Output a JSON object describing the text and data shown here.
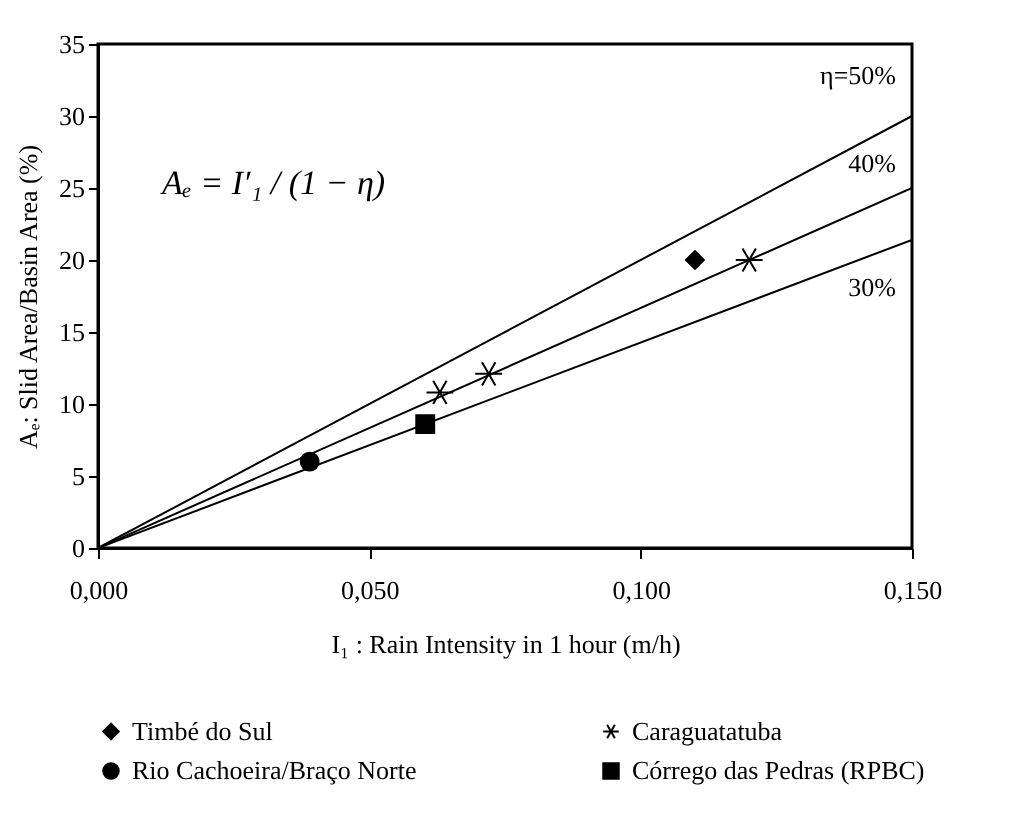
{
  "chart_data": {
    "type": "scatter",
    "xlabel": "I₁ : Rain Intensity in 1 hour (m/h)",
    "ylabel": "Aₑ: Slid Area/Basin Area (%)",
    "xlim": [
      0,
      0.15
    ],
    "xticks": [
      {
        "value": 0,
        "label": "0,000"
      },
      {
        "value": 0.05,
        "label": "0,050"
      },
      {
        "value": 0.1,
        "label": "0,100"
      },
      {
        "value": 0.15,
        "label": "0,150"
      }
    ],
    "ylim": [
      0,
      35
    ],
    "yticks": [
      0,
      5,
      10,
      15,
      20,
      25,
      30,
      35
    ],
    "grid": false,
    "legend": "bottom",
    "annotations": [
      "Aₑ = I′₁ / (1 − η)"
    ],
    "series": [
      {
        "name": "η=50%",
        "type": "line",
        "color": "#000000",
        "marker": "none",
        "x": [
          0,
          0.15
        ],
        "values": [
          0,
          30
        ]
      },
      {
        "name": "40%",
        "type": "line",
        "color": "#000000",
        "marker": "none",
        "x": [
          0,
          0.15
        ],
        "values": [
          0,
          25
        ]
      },
      {
        "name": "30%",
        "type": "line",
        "color": "#000000",
        "marker": "none",
        "x": [
          0,
          0.15
        ],
        "values": [
          0,
          21.4
        ]
      },
      {
        "name": "Timbé do Sul",
        "color": "#000000",
        "marker": "diamond",
        "x": [
          0.11
        ],
        "values": [
          20
        ]
      },
      {
        "name": "Caraguatatuba",
        "color": "#000000",
        "marker": "cross",
        "x": [
          0.063,
          0.072,
          0.12
        ],
        "values": [
          10.8,
          12.1,
          20
        ]
      },
      {
        "name": "Rio Cachoeira/Braço Norte",
        "color": "#000000",
        "marker": "circle",
        "x": [
          0.039
        ],
        "values": [
          6
        ]
      },
      {
        "name": "Córrego das Pedras (RPBC)",
        "color": "#000000",
        "marker": "square",
        "x": [
          0.0603
        ],
        "values": [
          8.6
        ]
      }
    ]
  }
}
